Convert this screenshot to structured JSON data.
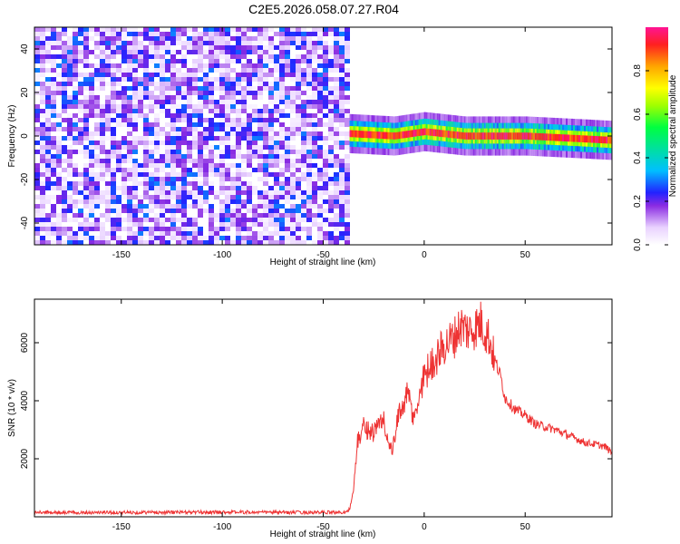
{
  "figure": {
    "title": "C2E5.2026.058.07.27.R04"
  },
  "chart_data": [
    {
      "type": "heatmap",
      "title": "",
      "xlabel": "Height of straight line (km)",
      "ylabel": "Frequency (Hz)",
      "xlim": [
        -193,
        93
      ],
      "ylim": [
        -50,
        50
      ],
      "xticks": [
        -150,
        -100,
        -50,
        0,
        50
      ],
      "yticks": [
        -40,
        -20,
        0,
        20,
        40
      ],
      "colorbar": {
        "label": "Normalized spectral amplitude",
        "range": [
          0.0,
          1.0
        ],
        "ticks": [
          0.0,
          0.2,
          0.4,
          0.6,
          0.8
        ]
      },
      "regions": [
        {
          "name": "noise",
          "x_range": [
            -193,
            -37
          ],
          "frequency_range": [
            -50,
            50
          ],
          "amplitude_range": [
            0.0,
            0.3
          ]
        },
        {
          "name": "signal",
          "x_range": [
            -37,
            93
          ],
          "center_frequency": [
            [
              -35,
              1
            ],
            [
              -15,
              0
            ],
            [
              0,
              2
            ],
            [
              20,
              0
            ],
            [
              50,
              0
            ],
            [
              93,
              -2
            ]
          ],
          "peak_amplitude": 1.0
        }
      ]
    },
    {
      "type": "line",
      "title": "",
      "xlabel": "Height of straight line (km)",
      "ylabel": "SNR (10 * v/v)",
      "xlim": [
        -193,
        93
      ],
      "ylim": [
        0,
        7500
      ],
      "xticks": [
        -150,
        -100,
        -50,
        0,
        50
      ],
      "yticks": [
        2000,
        4000,
        6000
      ],
      "line_color": "#ee3333",
      "series": [
        {
          "x": [
            -193,
            -150,
            -100,
            -60,
            -40,
            -37,
            -35,
            -33,
            -30,
            -25,
            -20,
            -18,
            -16,
            -12,
            -8,
            -5,
            0,
            5,
            10,
            15,
            18,
            22,
            25,
            28,
            30,
            32,
            35,
            38,
            40,
            45,
            50,
            55,
            60,
            65,
            70,
            75,
            80,
            85,
            90,
            93
          ],
          "values": [
            150,
            150,
            160,
            150,
            150,
            250,
            900,
            2600,
            3100,
            2900,
            3400,
            2600,
            2200,
            3700,
            4200,
            3300,
            4900,
            5400,
            5900,
            6200,
            6600,
            6400,
            6500,
            6700,
            6400,
            6200,
            5400,
            4800,
            4100,
            3700,
            3500,
            3200,
            3100,
            3000,
            2850,
            2700,
            2550,
            2500,
            2400,
            2200
          ]
        }
      ]
    }
  ]
}
